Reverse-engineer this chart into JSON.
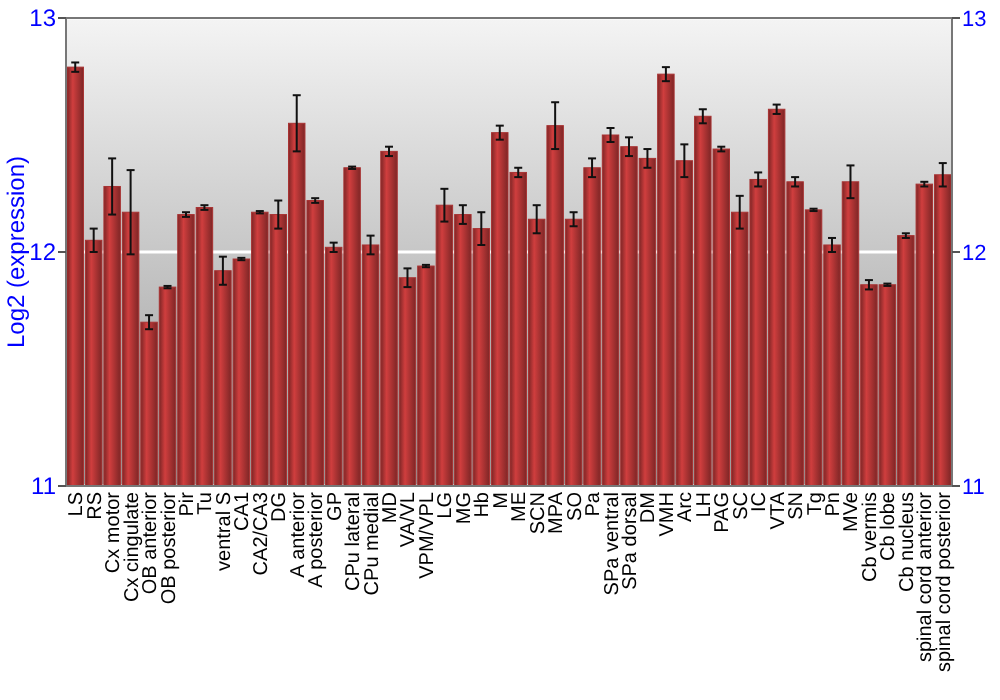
{
  "chart_data": {
    "type": "bar",
    "ylabel": "Log2 (expression)",
    "categories": [
      "LS",
      "RS",
      "Cx motor",
      "Cx cingulate",
      "OB anterior",
      "OB posterior",
      "Pir",
      "Tu",
      "ventral S",
      "CA1",
      "CA2/CA3",
      "DG",
      "A anterior",
      "A posterior",
      "GP",
      "CPu lateral",
      "CPu medial",
      "MD",
      "VA/VL",
      "VPM/VPL",
      "LG",
      "MG",
      "Hb",
      "M",
      "ME",
      "SCN",
      "MPA",
      "SO",
      "Pa",
      "SPa ventral",
      "SPa dorsal",
      "DM",
      "VMH",
      "Arc",
      "LH",
      "PAG",
      "SC",
      "IC",
      "VTA",
      "SN",
      "Tg",
      "Pn",
      "MVe",
      "Cb vermis",
      "Cb lobe",
      "Cb nucleus",
      "spinal cord anterior",
      "spinal cord posterior"
    ],
    "values": [
      12.79,
      12.05,
      12.28,
      12.17,
      11.7,
      11.85,
      12.16,
      12.19,
      11.92,
      11.97,
      12.17,
      12.16,
      12.55,
      12.22,
      12.02,
      12.36,
      12.03,
      12.43,
      11.89,
      11.94,
      12.2,
      12.16,
      12.1,
      12.51,
      12.34,
      12.14,
      12.54,
      12.14,
      12.36,
      12.5,
      12.45,
      12.4,
      12.76,
      12.39,
      12.58,
      12.44,
      12.17,
      12.31,
      12.61,
      12.3,
      12.18,
      12.03,
      12.3,
      11.86,
      11.86,
      12.07,
      12.29,
      12.33
    ],
    "errors": [
      0.02,
      0.05,
      0.12,
      0.18,
      0.03,
      0.005,
      0.01,
      0.01,
      0.06,
      0.005,
      0.005,
      0.06,
      0.12,
      0.01,
      0.02,
      0.005,
      0.04,
      0.02,
      0.04,
      0.005,
      0.07,
      0.04,
      0.07,
      0.03,
      0.02,
      0.06,
      0.1,
      0.03,
      0.04,
      0.03,
      0.04,
      0.04,
      0.03,
      0.07,
      0.03,
      0.01,
      0.07,
      0.03,
      0.02,
      0.02,
      0.005,
      0.03,
      0.07,
      0.02,
      0.005,
      0.01,
      0.01,
      0.05
    ],
    "color": "#a83232",
    "ylim": [
      11,
      13
    ],
    "yticks": [
      11,
      12,
      13
    ],
    "y2lim": [
      11,
      13
    ],
    "y2ticks": [
      11,
      12,
      13
    ],
    "grid": "y"
  }
}
